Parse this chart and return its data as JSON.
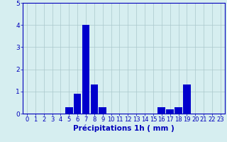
{
  "xlabel": "Précipitations 1h ( mm )",
  "hours": [
    0,
    1,
    2,
    3,
    4,
    5,
    6,
    7,
    8,
    9,
    10,
    11,
    12,
    13,
    14,
    15,
    16,
    17,
    18,
    19,
    20,
    21,
    22,
    23
  ],
  "values": [
    0,
    0,
    0,
    0,
    0,
    0.3,
    0.9,
    4.0,
    1.3,
    0.3,
    0,
    0,
    0,
    0,
    0,
    0,
    0.3,
    0.2,
    0.3,
    1.3,
    0,
    0,
    0,
    0
  ],
  "bar_color": "#0000cc",
  "bg_color": "#d6eef0",
  "grid_color": "#aac8cc",
  "tick_color": "#0000bb",
  "label_color": "#0000bb",
  "ylim": [
    0,
    5
  ],
  "yticks": [
    0,
    1,
    2,
    3,
    4,
    5
  ],
  "xlabel_fontsize": 7.5,
  "tick_fontsize": 6.0
}
